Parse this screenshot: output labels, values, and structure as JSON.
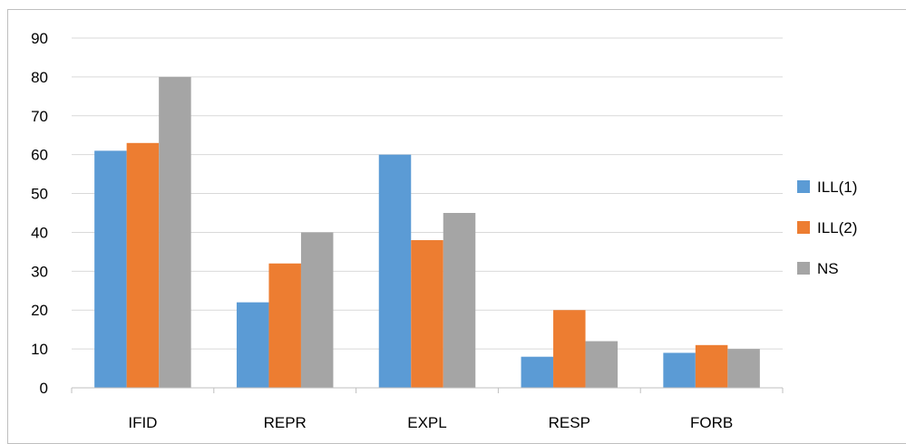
{
  "chart_data": {
    "type": "bar",
    "categories": [
      "IFID",
      "REPR",
      "EXPL",
      "RESP",
      "FORB"
    ],
    "series": [
      {
        "name": "ILL(1)",
        "color": "#5b9bd5",
        "values": [
          61,
          22,
          60,
          8,
          9
        ]
      },
      {
        "name": "ILL(2)",
        "color": "#ed7d31",
        "values": [
          63,
          32,
          38,
          20,
          11
        ]
      },
      {
        "name": "NS",
        "color": "#a5a5a5",
        "values": [
          80,
          40,
          45,
          12,
          10
        ]
      }
    ],
    "y_ticks": [
      "0",
      "10",
      "20",
      "30",
      "40",
      "50",
      "60",
      "70",
      "80",
      "90"
    ],
    "ylim": [
      0,
      90
    ],
    "title": "",
    "xlabel": "",
    "ylabel": "",
    "grid": true,
    "legend_position": "right"
  }
}
